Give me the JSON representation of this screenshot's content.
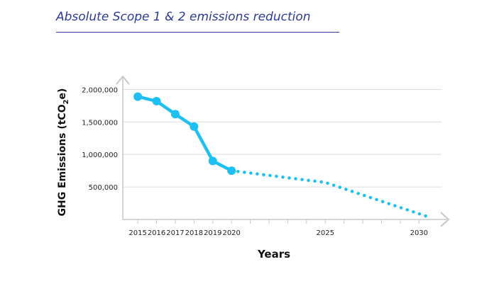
{
  "title": "Absolute Scope 1 & 2 emissions reduction",
  "colors": {
    "title": "#2d3a9a",
    "series": "#1ec0f2",
    "axis": "#c8c8c8",
    "grid": "#dcdcdc"
  },
  "chart_data": {
    "type": "line",
    "xlabel": "Years",
    "ylabel_parts": {
      "before": "GHG Emissions (tCO",
      "sub": "2",
      "after": "e)"
    },
    "xlim": [
      2014.2,
      2031.2
    ],
    "ylim": [
      0,
      2200000
    ],
    "x_tick_labels": [
      "2015",
      "2016",
      "2017",
      "2018",
      "2019",
      "2020",
      "2025",
      "2030"
    ],
    "x_tick_marks": [
      2015,
      2016,
      2017,
      2018,
      2019,
      2020,
      2021,
      2022,
      2023,
      2024,
      2025,
      2026,
      2027,
      2028,
      2029,
      2030
    ],
    "y_ticks": [
      {
        "value": 500000,
        "label": "500,000"
      },
      {
        "value": 1000000,
        "label": "1,000,000"
      },
      {
        "value": 1500000,
        "label": "1,500,000"
      },
      {
        "value": 2000000,
        "label": "2,000,000"
      }
    ],
    "grid": true,
    "series": [
      {
        "style": "solid-markers",
        "x": [
          2015,
          2016,
          2017,
          2018,
          2019,
          2020
        ],
        "y": [
          1890000,
          1820000,
          1620000,
          1430000,
          900000,
          750000
        ]
      },
      {
        "style": "dotted",
        "x": [
          2020,
          2025,
          2030.6
        ],
        "y": [
          750000,
          570000,
          30000
        ]
      }
    ]
  }
}
